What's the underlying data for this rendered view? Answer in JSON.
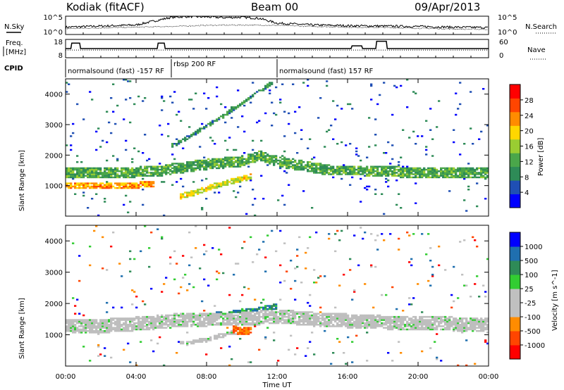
{
  "header": {
    "station": "Kodiak  (fitACF)",
    "beam": "Beam 00",
    "date": "09/Apr/2013"
  },
  "colors": {
    "power_scale": [
      "#0000ff",
      "#1f4fb4",
      "#2e8b57",
      "#4aa64a",
      "#9acd32",
      "#ffd700",
      "#ff8c00",
      "#ff4500",
      "#ff0000"
    ],
    "velocity_scale": [
      "#ff0000",
      "#ff4500",
      "#ff8c00",
      "#c0c0c0",
      "#c0c0c0",
      "#32cd32",
      "#2e8b57",
      "#1f6faf",
      "#0000ff"
    ],
    "ground_scatter": "#bebebe"
  },
  "chart_data": [
    {
      "type": "line",
      "title": "N.Sky / N.Search",
      "left_label": "N.Sky",
      "right_label": "N.Search",
      "left_ticks": [
        "10^5",
        "10^0"
      ],
      "right_ticks": [
        "10^5",
        "10^0"
      ],
      "x_range_hours": [
        0,
        24
      ],
      "series": [
        {
          "name": "N.Sky",
          "x": [
            0,
            2,
            4,
            6,
            7,
            8,
            9,
            10,
            11,
            12,
            14,
            16,
            18,
            20,
            22,
            24
          ],
          "y": [
            2.0,
            2.3,
            2.6,
            4.7,
            4.9,
            4.8,
            4.6,
            4.7,
            4.4,
            3.1,
            2.6,
            2.4,
            2.3,
            2.2,
            2.0,
            1.9
          ]
        },
        {
          "name": "N.Search",
          "x": [
            0,
            2,
            4,
            6,
            8,
            10,
            12,
            14,
            16,
            18,
            20,
            22,
            24
          ],
          "y": [
            1.6,
            1.8,
            2.0,
            2.2,
            2.5,
            2.6,
            2.5,
            2.2,
            2.0,
            1.9,
            1.7,
            1.5,
            1.4
          ]
        }
      ]
    },
    {
      "type": "line",
      "title": "Freq. / Nave",
      "left_label_top": "Freq.",
      "left_label_bottom": "[MHz]",
      "right_label": "Nave",
      "left_ticks": [
        "18",
        "8"
      ],
      "right_ticks": [
        "60",
        "0"
      ],
      "x_range_hours": [
        0,
        24
      ],
      "series": [
        {
          "name": "Freq.",
          "x": [
            0,
            0.3,
            0.35,
            0.8,
            0.85,
            5.2,
            5.25,
            5.6,
            5.65,
            12,
            12.05,
            16.2,
            16.25,
            16.8,
            16.85,
            17.6,
            17.65,
            18.2,
            18.25,
            24
          ],
          "y": [
            13,
            13,
            16,
            16,
            13,
            13,
            16,
            16,
            13,
            13,
            13,
            13,
            14.5,
            14.5,
            13,
            13,
            17,
            17,
            13,
            13
          ]
        }
      ]
    },
    {
      "type": "table",
      "title": "CPID",
      "segments": [
        {
          "start": 0,
          "end": 6,
          "label": "normalsound (fast) -157 RF"
        },
        {
          "start": 6,
          "end": 12,
          "label": "rbsp 200 RF"
        },
        {
          "start": 12,
          "end": 24,
          "label": "normalsound (fast) 157 RF"
        }
      ]
    },
    {
      "type": "heatmap",
      "title": "Power",
      "ylabel": "Slant Range [km]",
      "colorbar_label": "Power [dB]",
      "colorbar_ticks": [
        "28",
        "24",
        "20",
        "16",
        "12",
        "8",
        "4"
      ],
      "ylim": [
        0,
        4500
      ],
      "y_ticks": [
        1000,
        2000,
        3000,
        4000
      ],
      "x_range_hours": [
        0,
        24
      ],
      "bands": [
        {
          "x": [
            0,
            2,
            4,
            5,
            5.5,
            6,
            8,
            10,
            11,
            12,
            13,
            15,
            17,
            19,
            21,
            24
          ],
          "center": [
            1400,
            1420,
            1450,
            1500,
            1480,
            1550,
            1700,
            1800,
            2000,
            1800,
            1700,
            1500,
            1500,
            1450,
            1420,
            1400
          ],
          "width": 350,
          "level": 10
        },
        {
          "x": [
            0,
            1,
            2,
            3,
            4,
            5
          ],
          "center": [
            1000,
            980,
            990,
            1000,
            1020,
            1050
          ],
          "width": 200,
          "level": 20
        },
        {
          "x": [
            6.5,
            7.5,
            8.5,
            9.5,
            10.5
          ],
          "center": [
            650,
            800,
            1000,
            1150,
            1300
          ],
          "width": 180,
          "level": 16
        },
        {
          "x": [
            6,
            7,
            8,
            9,
            10,
            11,
            11.8
          ],
          "center": [
            2300,
            2600,
            2950,
            3300,
            3700,
            4100,
            4400
          ],
          "width": 120,
          "level": 8
        }
      ]
    },
    {
      "type": "heatmap",
      "title": "Velocity",
      "ylabel": "Slant Range [km]",
      "colorbar_label": "Velocity [m s^-1]",
      "colorbar_ticks": [
        "1000",
        "500",
        "100",
        "25",
        "-25",
        "-100",
        "-500",
        "-1000"
      ],
      "ylim": [
        0,
        4500
      ],
      "y_ticks": [
        1000,
        2000,
        3000,
        4000
      ],
      "x_range_hours": [
        0,
        24
      ],
      "x_ticks": [
        "00:00",
        "04:00",
        "08:00",
        "12:00",
        "16:00",
        "20:00",
        "00:00"
      ],
      "xlabel": "Time UT",
      "bands": [
        {
          "x": [
            0,
            2,
            4,
            5,
            6,
            8,
            10,
            12,
            14,
            16,
            18,
            20,
            22,
            24
          ],
          "center": [
            1300,
            1280,
            1350,
            1400,
            1450,
            1500,
            1500,
            1600,
            1500,
            1450,
            1400,
            1380,
            1350,
            1300
          ],
          "width": 450,
          "vel": 0
        },
        {
          "x": [
            8,
            9,
            10,
            11,
            12
          ],
          "center": [
            1500,
            1550,
            1600,
            1700,
            1800
          ],
          "width": 400,
          "vel": 300
        },
        {
          "x": [
            9.5,
            10,
            10.5
          ],
          "center": [
            1200,
            1100,
            1150
          ],
          "width": 250,
          "vel": -300
        },
        {
          "x": [
            6.5,
            8,
            9,
            10.5
          ],
          "center": [
            700,
            850,
            1000,
            1200
          ],
          "width": 150,
          "vel": 0
        }
      ]
    }
  ]
}
